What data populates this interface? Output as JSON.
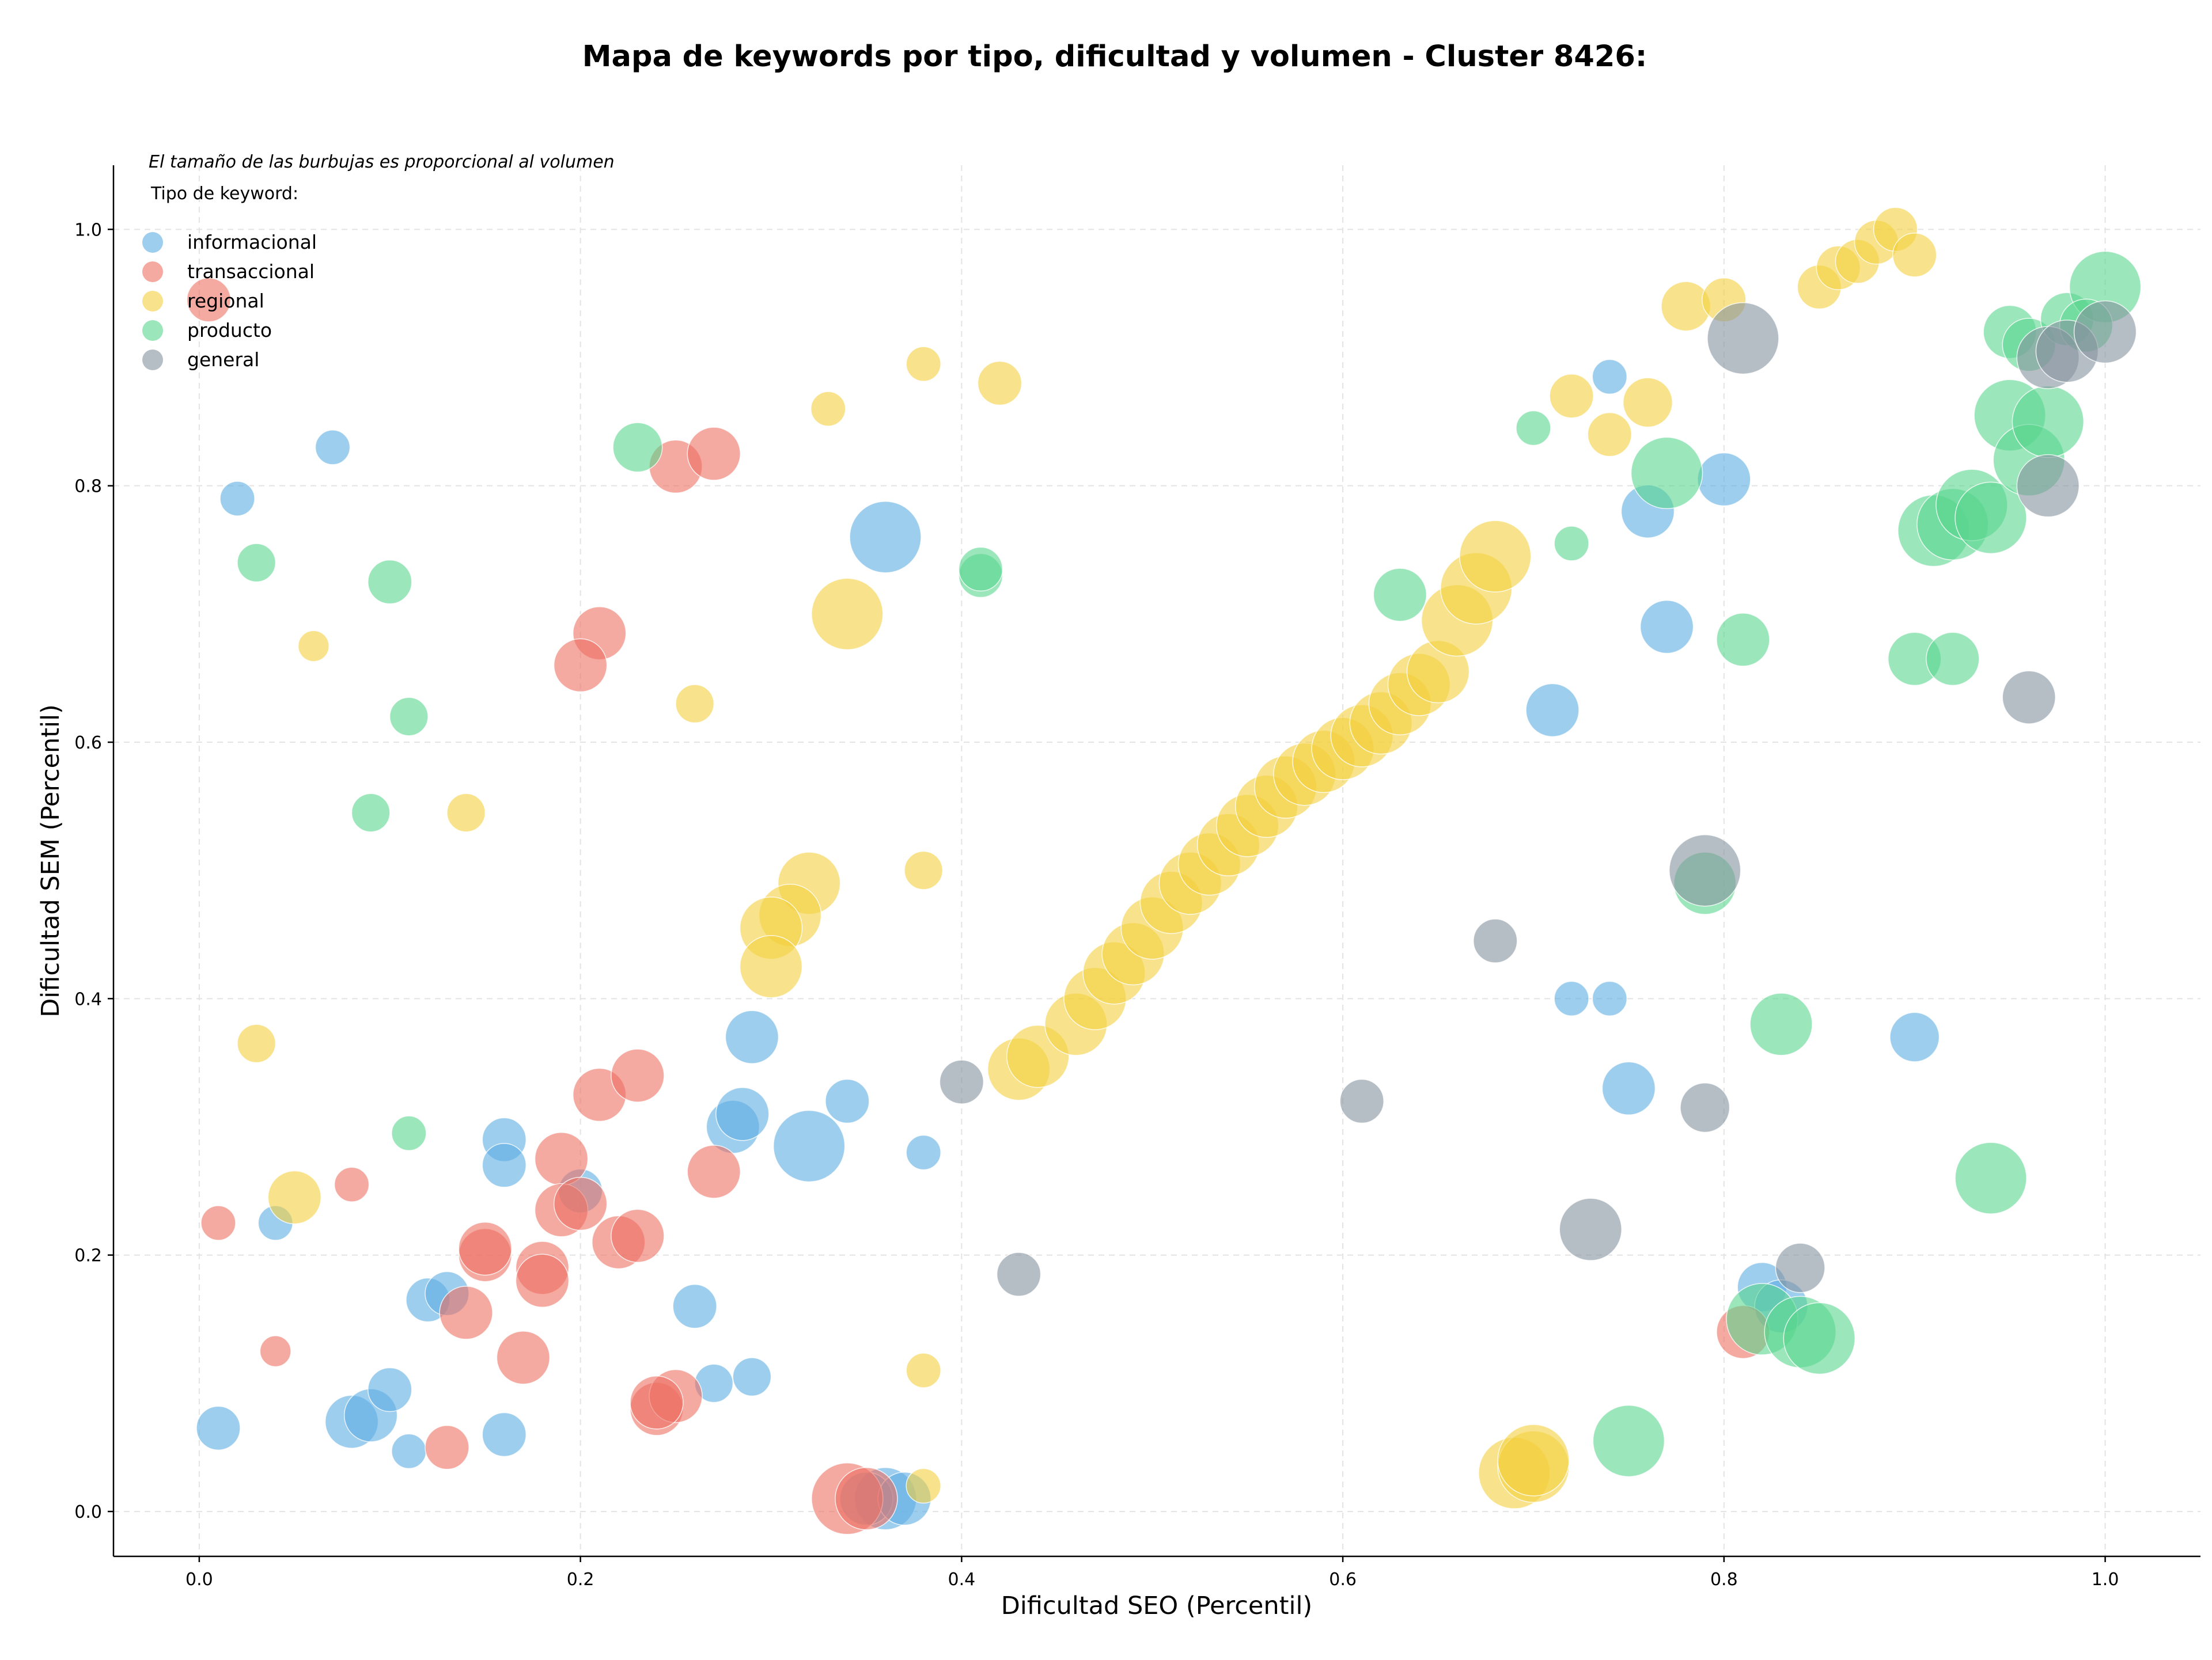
{
  "chart_data": {
    "type": "scatter",
    "title": "Mapa de keywords por tipo, dificultad y volumen - Cluster 8426:",
    "xlabel": "Dificultad SEO (Percentil)",
    "ylabel": "Dificultad SEM (Percentil)",
    "note": "El tamaño de las burbujas es proporcional al volumen",
    "legend_title": "Tipo de keyword:",
    "legend_position": "top-left",
    "grid": true,
    "xlim": [
      -0.045,
      1.05
    ],
    "ylim": [
      -0.035,
      1.05
    ],
    "xticks": [
      0.0,
      0.2,
      0.4,
      0.6,
      0.8,
      1.0
    ],
    "yticks": [
      0.0,
      0.2,
      0.4,
      0.6,
      0.8,
      1.0
    ],
    "xtick_labels": [
      "0.0",
      "0.2",
      "0.4",
      "0.6",
      "0.8",
      "1.0"
    ],
    "ytick_labels": [
      "0.0",
      "0.2",
      "0.4",
      "0.6",
      "0.8",
      "1.0"
    ],
    "series": [
      {
        "name": "informacional",
        "color": "#5dade2",
        "points": [
          [
            0.36,
            0.76,
            3
          ],
          [
            0.07,
            0.83,
            1
          ],
          [
            0.02,
            0.79,
            1
          ],
          [
            0.29,
            0.37,
            2
          ],
          [
            0.28,
            0.3,
            2
          ],
          [
            0.285,
            0.31,
            2
          ],
          [
            0.32,
            0.285,
            3
          ],
          [
            0.34,
            0.32,
            1.5
          ],
          [
            0.38,
            0.28,
            1
          ],
          [
            0.16,
            0.29,
            1.5
          ],
          [
            0.16,
            0.27,
            1.5
          ],
          [
            0.2,
            0.25,
            1.5
          ],
          [
            0.12,
            0.165,
            1.5
          ],
          [
            0.13,
            0.17,
            1.5
          ],
          [
            0.26,
            0.16,
            1.5
          ],
          [
            0.04,
            0.225,
            1
          ],
          [
            0.01,
            0.065,
            1.5
          ],
          [
            0.08,
            0.07,
            2
          ],
          [
            0.09,
            0.075,
            2
          ],
          [
            0.1,
            0.095,
            1.5
          ],
          [
            0.11,
            0.047,
            1
          ],
          [
            0.16,
            0.06,
            1.5
          ],
          [
            0.27,
            0.1,
            1.2
          ],
          [
            0.29,
            0.105,
            1.2
          ],
          [
            0.36,
            0.01,
            2.5
          ],
          [
            0.35,
            0.01,
            2
          ],
          [
            0.37,
            0.01,
            2
          ],
          [
            0.74,
            0.885,
            1
          ],
          [
            0.76,
            0.78,
            2
          ],
          [
            0.8,
            0.805,
            2
          ],
          [
            0.77,
            0.69,
            2
          ],
          [
            0.71,
            0.625,
            2
          ],
          [
            0.72,
            0.4,
            1
          ],
          [
            0.74,
            0.4,
            1
          ],
          [
            0.75,
            0.33,
            2
          ],
          [
            0.9,
            0.37,
            1.8
          ],
          [
            0.82,
            0.175,
            1.8
          ],
          [
            0.83,
            0.16,
            2
          ]
        ]
      },
      {
        "name": "transaccional",
        "color": "#ec7063",
        "points": [
          [
            0.005,
            0.945,
            1.5
          ],
          [
            0.25,
            0.815,
            2
          ],
          [
            0.27,
            0.825,
            2
          ],
          [
            0.21,
            0.685,
            2
          ],
          [
            0.2,
            0.66,
            2
          ],
          [
            0.21,
            0.325,
            2
          ],
          [
            0.23,
            0.34,
            2
          ],
          [
            0.27,
            0.265,
            2
          ],
          [
            0.08,
            0.255,
            1
          ],
          [
            0.01,
            0.225,
            1
          ],
          [
            0.19,
            0.275,
            2
          ],
          [
            0.19,
            0.235,
            2
          ],
          [
            0.2,
            0.24,
            2
          ],
          [
            0.22,
            0.21,
            2
          ],
          [
            0.23,
            0.215,
            2
          ],
          [
            0.15,
            0.2,
            2
          ],
          [
            0.15,
            0.205,
            2
          ],
          [
            0.18,
            0.19,
            2
          ],
          [
            0.18,
            0.18,
            2
          ],
          [
            0.14,
            0.155,
            2
          ],
          [
            0.17,
            0.12,
            2
          ],
          [
            0.04,
            0.125,
            0.8
          ],
          [
            0.13,
            0.05,
            1.5
          ],
          [
            0.24,
            0.08,
            2
          ],
          [
            0.25,
            0.09,
            2
          ],
          [
            0.24,
            0.085,
            2
          ],
          [
            0.34,
            0.01,
            3
          ],
          [
            0.35,
            0.01,
            2.5
          ],
          [
            0.81,
            0.14,
            2
          ]
        ]
      },
      {
        "name": "regional",
        "color": "#f4d03f",
        "points": [
          [
            0.38,
            0.895,
            1
          ],
          [
            0.42,
            0.88,
            1.5
          ],
          [
            0.33,
            0.86,
            1
          ],
          [
            0.34,
            0.7,
            3
          ],
          [
            0.26,
            0.63,
            1.2
          ],
          [
            0.06,
            0.675,
            0.8
          ],
          [
            0.14,
            0.545,
            1.2
          ],
          [
            0.38,
            0.5,
            1.2
          ],
          [
            0.32,
            0.49,
            2.5
          ],
          [
            0.31,
            0.465,
            2.5
          ],
          [
            0.3,
            0.455,
            2.5
          ],
          [
            0.3,
            0.425,
            2.5
          ],
          [
            0.03,
            0.365,
            1.2
          ],
          [
            0.05,
            0.245,
            2
          ],
          [
            0.38,
            0.11,
            1
          ],
          [
            0.38,
            0.02,
            1
          ],
          [
            0.69,
            0.03,
            3
          ],
          [
            0.7,
            0.035,
            3
          ],
          [
            0.7,
            0.04,
            3
          ],
          [
            0.43,
            0.345,
            2.5
          ],
          [
            0.44,
            0.355,
            2.5
          ],
          [
            0.46,
            0.38,
            2.5
          ],
          [
            0.47,
            0.4,
            2.5
          ],
          [
            0.48,
            0.42,
            2.5
          ],
          [
            0.49,
            0.435,
            2.5
          ],
          [
            0.5,
            0.455,
            2.5
          ],
          [
            0.51,
            0.475,
            2.5
          ],
          [
            0.52,
            0.49,
            2.5
          ],
          [
            0.53,
            0.505,
            2.5
          ],
          [
            0.54,
            0.52,
            2.5
          ],
          [
            0.55,
            0.535,
            2.5
          ],
          [
            0.56,
            0.55,
            2.5
          ],
          [
            0.57,
            0.565,
            2.5
          ],
          [
            0.58,
            0.575,
            2.5
          ],
          [
            0.59,
            0.585,
            2.5
          ],
          [
            0.6,
            0.595,
            2.5
          ],
          [
            0.61,
            0.605,
            2.5
          ],
          [
            0.62,
            0.615,
            2.5
          ],
          [
            0.63,
            0.63,
            2.5
          ],
          [
            0.64,
            0.645,
            2.5
          ],
          [
            0.65,
            0.655,
            2.5
          ],
          [
            0.66,
            0.695,
            3
          ],
          [
            0.67,
            0.72,
            3
          ],
          [
            0.68,
            0.745,
            3
          ],
          [
            0.72,
            0.87,
            1.5
          ],
          [
            0.74,
            0.84,
            1.5
          ],
          [
            0.76,
            0.865,
            1.8
          ],
          [
            0.78,
            0.94,
            1.8
          ],
          [
            0.8,
            0.945,
            1.5
          ],
          [
            0.85,
            0.955,
            1.5
          ],
          [
            0.86,
            0.97,
            1.5
          ],
          [
            0.87,
            0.975,
            1.5
          ],
          [
            0.88,
            0.99,
            1.5
          ],
          [
            0.89,
            1.0,
            1.5
          ],
          [
            0.9,
            0.98,
            1.5
          ]
        ]
      },
      {
        "name": "producto",
        "color": "#58d68d",
        "points": [
          [
            0.23,
            0.83,
            1.8
          ],
          [
            0.03,
            0.74,
            1.2
          ],
          [
            0.1,
            0.725,
            1.5
          ],
          [
            0.11,
            0.62,
            1.2
          ],
          [
            0.09,
            0.545,
            1.2
          ],
          [
            0.11,
            0.295,
            1
          ],
          [
            0.41,
            0.73,
            1.5
          ],
          [
            0.41,
            0.735,
            1.5
          ],
          [
            0.63,
            0.715,
            2
          ],
          [
            0.7,
            0.845,
            1
          ],
          [
            0.72,
            0.755,
            1
          ],
          [
            0.77,
            0.81,
            3
          ],
          [
            0.81,
            0.68,
            2
          ],
          [
            0.79,
            0.49,
            2.5
          ],
          [
            0.83,
            0.38,
            2.5
          ],
          [
            0.75,
            0.055,
            3
          ],
          [
            0.82,
            0.15,
            3
          ],
          [
            0.84,
            0.14,
            3
          ],
          [
            0.85,
            0.135,
            3
          ],
          [
            0.9,
            0.665,
            2
          ],
          [
            0.92,
            0.665,
            2
          ],
          [
            0.91,
            0.765,
            3
          ],
          [
            0.92,
            0.77,
            3
          ],
          [
            0.93,
            0.785,
            3
          ],
          [
            0.94,
            0.775,
            3
          ],
          [
            0.95,
            0.92,
            2
          ],
          [
            0.96,
            0.91,
            2
          ],
          [
            0.95,
            0.855,
            3
          ],
          [
            0.96,
            0.82,
            3
          ],
          [
            0.97,
            0.85,
            3
          ],
          [
            0.98,
            0.93,
            2
          ],
          [
            1.0,
            0.955,
            3
          ],
          [
            0.99,
            0.925,
            2
          ],
          [
            0.94,
            0.26,
            3
          ]
        ]
      },
      {
        "name": "general",
        "color": "#85929e",
        "points": [
          [
            0.4,
            0.335,
            1.5
          ],
          [
            0.43,
            0.185,
            1.5
          ],
          [
            0.61,
            0.32,
            1.5
          ],
          [
            0.68,
            0.445,
            1.5
          ],
          [
            0.73,
            0.22,
            2.5
          ],
          [
            0.79,
            0.5,
            3
          ],
          [
            0.79,
            0.315,
            1.8
          ],
          [
            0.84,
            0.19,
            1.8
          ],
          [
            0.81,
            0.915,
            3
          ],
          [
            0.96,
            0.635,
            2
          ],
          [
            0.97,
            0.8,
            2.5
          ],
          [
            0.97,
            0.9,
            2.5
          ],
          [
            0.98,
            0.905,
            2.5
          ],
          [
            1.0,
            0.92,
            2.5
          ]
        ]
      }
    ]
  }
}
